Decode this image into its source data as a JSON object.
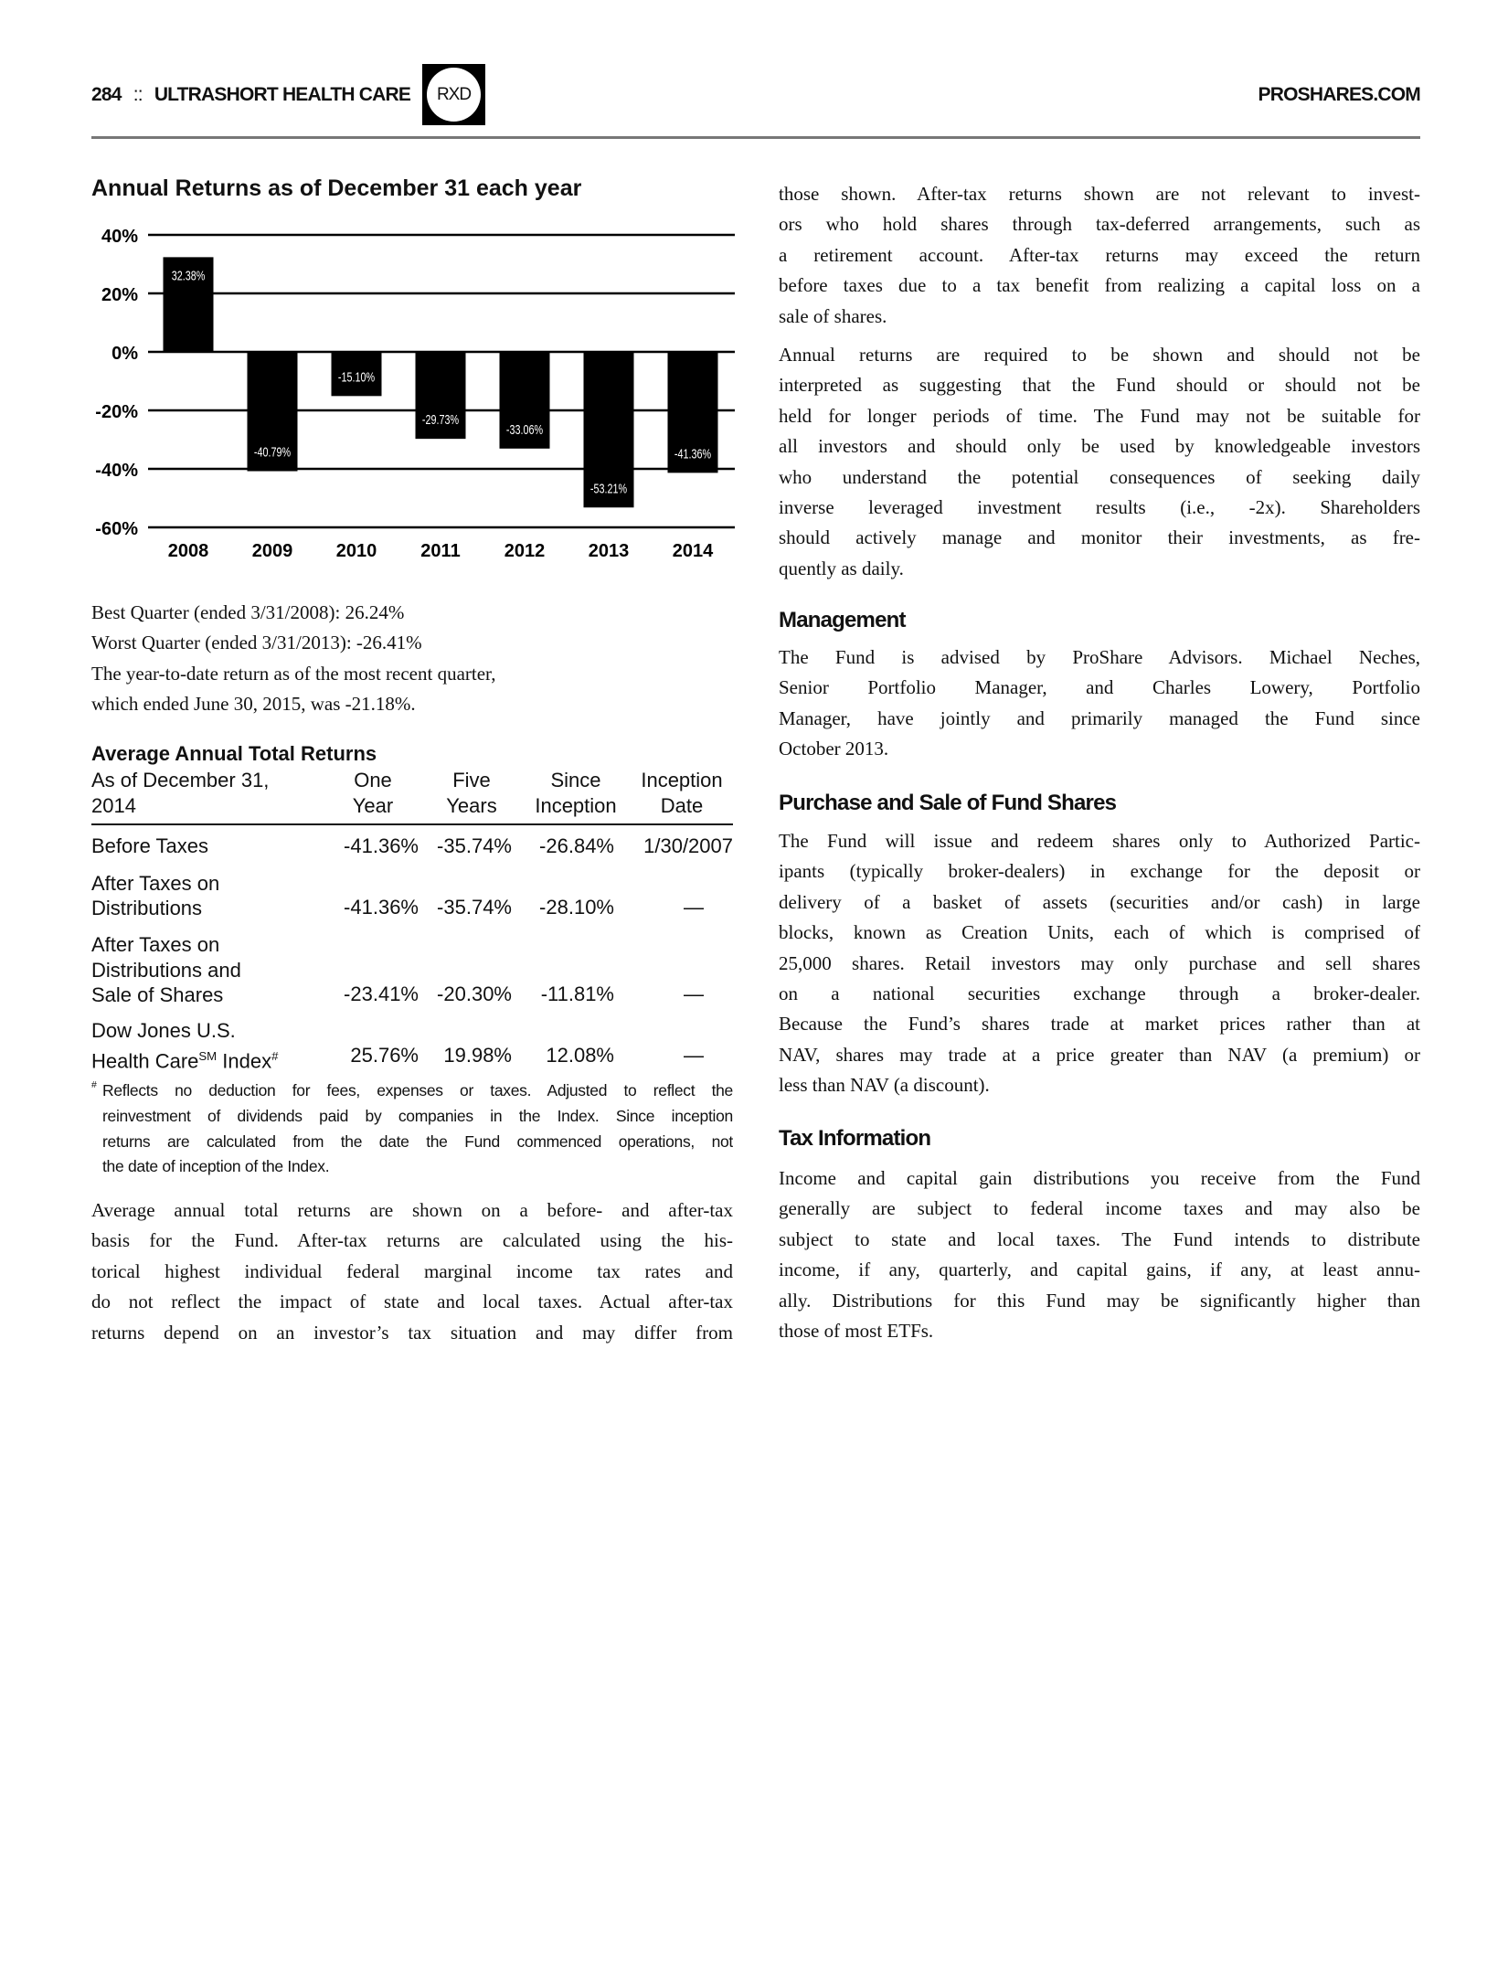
{
  "header": {
    "page_number": "284",
    "separator": "::",
    "section": "ULTRASHORT HEALTH CARE",
    "ticker": "RXD",
    "site": "PROSHARES.COM"
  },
  "chart_data": {
    "type": "bar",
    "title": "Annual Returns as of December 31 each year",
    "categories": [
      "2008",
      "2009",
      "2010",
      "2011",
      "2012",
      "2013",
      "2014"
    ],
    "values": [
      32.38,
      -40.79,
      -15.1,
      -29.73,
      -33.06,
      -53.21,
      -41.36
    ],
    "data_labels": [
      "32.38%",
      "-40.79%",
      "-15.10%",
      "-29.73%",
      "-33.06%",
      "-53.21%",
      "-41.36%"
    ],
    "ylim": [
      -60,
      40
    ],
    "yticks": [
      40,
      20,
      0,
      -20,
      -40,
      -60
    ],
    "ytick_labels": [
      "40%",
      "20%",
      "0%",
      "-20%",
      "-40%",
      "-60%"
    ],
    "grid": true,
    "bar_color": "#000000",
    "label_color": "#ffffff"
  },
  "quarters": {
    "lines": [
      "Best Quarter (ended 3/31/2008): 26.24%",
      "Worst Quarter (ended 3/31/2013): -26.41%",
      "The year-to-date return as of the most recent quarter,",
      "which ended June 30, 2015, was -21.18%."
    ]
  },
  "returns_table": {
    "title": "Average Annual Total Returns",
    "header": {
      "label": [
        "As of December 31,",
        "2014"
      ],
      "one_year": [
        "One",
        "Year"
      ],
      "five_years": [
        "Five",
        "Years"
      ],
      "since_inception": [
        "Since",
        "Inception"
      ],
      "inception_date": [
        "Inception",
        "Date"
      ]
    },
    "rows": [
      {
        "label": [
          "Before Taxes"
        ],
        "one": "-41.36%",
        "five": "-35.74%",
        "since": "-26.84%",
        "date": "1/30/2007"
      },
      {
        "label": [
          "After Taxes on",
          "Distributions"
        ],
        "one": "-41.36%",
        "five": "-35.74%",
        "since": "-28.10%",
        "date": "—"
      },
      {
        "label": [
          "After Taxes on",
          "Distributions and",
          "Sale of Shares"
        ],
        "one": "-23.41%",
        "five": "-20.30%",
        "since": "-11.81%",
        "date": "—"
      },
      {
        "label": [
          "Dow Jones U.S.",
          "Health Care",
          "SM",
          " Index",
          "#"
        ],
        "one": "25.76%",
        "five": "19.98%",
        "since": "12.08%",
        "date": "—"
      }
    ],
    "footnote_mark": "#",
    "footnote": [
      "Reflects no deduction for fees, expenses or taxes. Adjusted to reflect the",
      "reinvestment of dividends paid by companies in the Index. Since inception",
      "returns are calculated from the date the Fund commenced operations, not",
      "the date of inception of the Index."
    ]
  },
  "left_paragraph": [
    "Average annual total returns are shown on a before- and after-tax",
    "basis for the Fund. After-tax returns are calculated using the his-",
    "torical highest individual federal marginal income tax rates and",
    "do not reflect the impact of state and local taxes. Actual after-tax",
    "returns depend on an investor’s tax situation and may differ from"
  ],
  "right_paragraphs": {
    "p1": [
      "those shown. After-tax returns shown are not relevant to invest-",
      "ors who hold shares through tax-deferred arrangements, such as",
      "a retirement account. After-tax returns may exceed the return",
      "before taxes due to a tax benefit from realizing a capital loss on a",
      "sale of shares."
    ],
    "p2": [
      "Annual returns are required to be shown and should not be",
      "interpreted as suggesting that the Fund should or should not be",
      "held for longer periods of time. The Fund may not be suitable for",
      "all investors and should only be used by knowledgeable investors",
      "who understand the potential consequences of seeking daily",
      "inverse leveraged investment results (i.e., -2x). Shareholders",
      "should actively manage and monitor their investments, as fre-",
      "quently as daily."
    ]
  },
  "management": {
    "heading": "Management",
    "lines": [
      "The Fund is advised by ProShare Advisors. Michael Neches,",
      "Senior Portfolio Manager, and Charles Lowery, Portfolio",
      "Manager, have jointly and primarily managed the Fund since",
      "October 2013."
    ]
  },
  "purchase": {
    "heading": "Purchase and Sale of Fund Shares",
    "lines": [
      "The Fund will issue and redeem shares only to Authorized Partic-",
      "ipants (typically broker-dealers) in exchange for the deposit or",
      "delivery of a basket of assets (securities and/or cash) in large",
      "blocks, known as Creation Units, each of which is comprised of",
      "25,000 shares. Retail investors may only purchase and sell shares",
      "on a national securities exchange through a broker-dealer.",
      "Because the Fund’s shares trade at market prices rather than at",
      "NAV, shares may trade at a price greater than NAV (a premium) or",
      "less than NAV (a discount)."
    ]
  },
  "tax": {
    "heading": "Tax Information",
    "lines": [
      "Income and capital gain distributions you receive from the Fund",
      "generally are subject to federal income taxes and may also be",
      "subject to state and local taxes. The Fund intends to distribute",
      "income, if any, quarterly, and capital gains, if any, at least annu-",
      "ally. Distributions for this Fund may be significantly higher than",
      "those of most ETFs."
    ]
  }
}
